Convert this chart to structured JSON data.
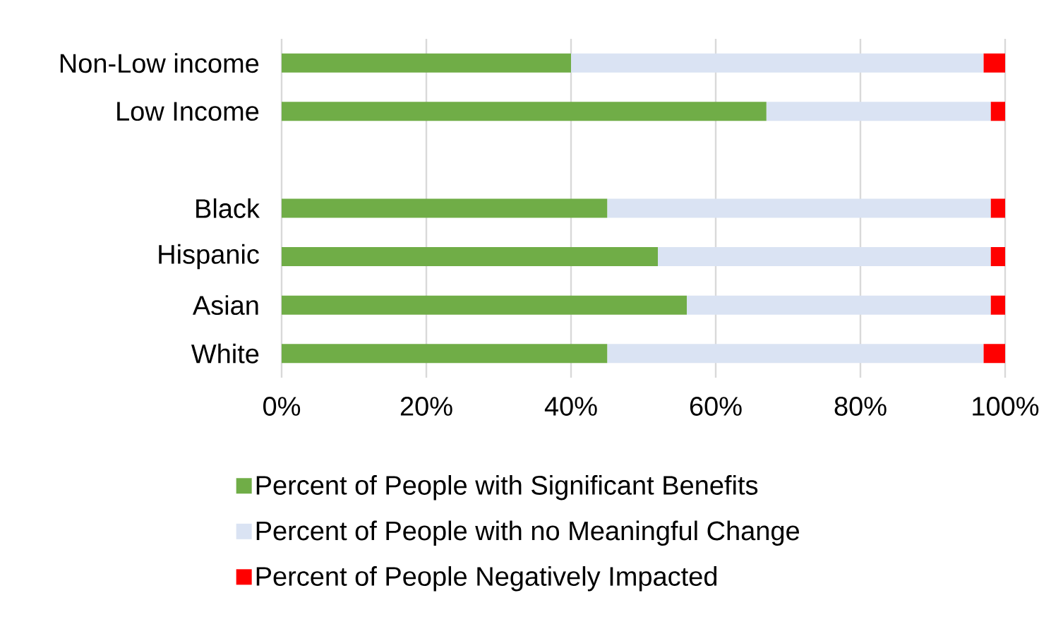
{
  "chart_data": {
    "type": "bar",
    "orientation": "horizontal",
    "stacked": true,
    "categories": [
      "Non-Low income",
      "Low Income",
      null,
      "Black",
      "Hispanic",
      "Asian",
      "White"
    ],
    "series": [
      {
        "name": "Percent of People with Significant Benefits",
        "color": "#70ad47",
        "values": [
          40,
          67,
          null,
          45,
          52,
          56,
          45
        ]
      },
      {
        "name": "Percent of People with no Meaningful Change",
        "color": "#dae3f3",
        "values": [
          57,
          31,
          null,
          53,
          46,
          42,
          52
        ]
      },
      {
        "name": "Percent of People Negatively Impacted",
        "color": "#ff0000",
        "values": [
          3,
          2,
          null,
          2,
          2,
          2,
          3
        ]
      }
    ],
    "xlim": [
      0,
      100
    ],
    "xticks": [
      {
        "value": 0,
        "label": "0%"
      },
      {
        "value": 20,
        "label": "20%"
      },
      {
        "value": 40,
        "label": "40%"
      },
      {
        "value": 60,
        "label": "60%"
      },
      {
        "value": 80,
        "label": "80%"
      },
      {
        "value": 100,
        "label": "100%"
      }
    ],
    "grid": "x",
    "legend": "bottom"
  }
}
